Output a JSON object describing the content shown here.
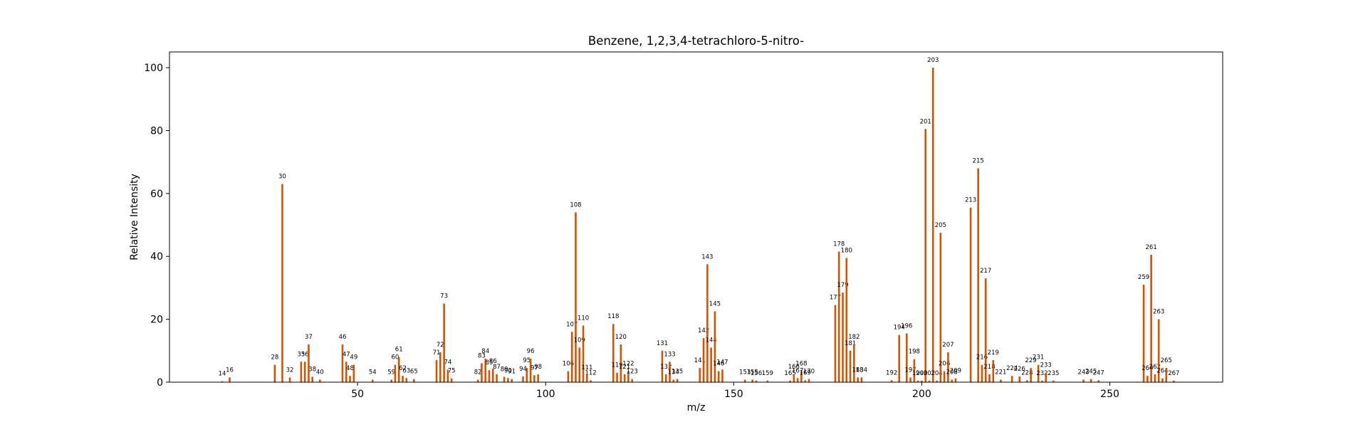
{
  "chart_data": {
    "type": "bar",
    "title": "Benzene, 1,2,3,4-tetrachloro-5-nitro-",
    "xlabel": "m/z",
    "ylabel": "Relative Intensity",
    "xlim": [
      0,
      280
    ],
    "ylim": [
      0,
      105
    ],
    "xticks": [
      50,
      100,
      150,
      200,
      250
    ],
    "yticks": [
      0,
      20,
      40,
      60,
      80,
      100
    ],
    "grid": false,
    "bar_color": "#d35400",
    "peaks": [
      {
        "mz": 14,
        "intensity": 0.3,
        "label": "14"
      },
      {
        "mz": 16,
        "intensity": 1.5,
        "label": "16"
      },
      {
        "mz": 28,
        "intensity": 5.5,
        "label": "28"
      },
      {
        "mz": 30,
        "intensity": 63,
        "label": "30"
      },
      {
        "mz": 32,
        "intensity": 1.5,
        "label": "32"
      },
      {
        "mz": 35,
        "intensity": 6.5,
        "label": "35"
      },
      {
        "mz": 36,
        "intensity": 6.5,
        "label": "36"
      },
      {
        "mz": 37,
        "intensity": 12,
        "label": "37"
      },
      {
        "mz": 38,
        "intensity": 1.7,
        "label": "38"
      },
      {
        "mz": 40,
        "intensity": 0.8,
        "label": "40"
      },
      {
        "mz": 46,
        "intensity": 12,
        "label": "46"
      },
      {
        "mz": 47,
        "intensity": 6.5,
        "label": "47"
      },
      {
        "mz": 48,
        "intensity": 2.0,
        "label": "48"
      },
      {
        "mz": 49,
        "intensity": 5.5,
        "label": "49"
      },
      {
        "mz": 54,
        "intensity": 0.8,
        "label": "54"
      },
      {
        "mz": 59,
        "intensity": 0.8,
        "label": "59"
      },
      {
        "mz": 60,
        "intensity": 5.5,
        "label": "60"
      },
      {
        "mz": 61,
        "intensity": 8,
        "label": "61"
      },
      {
        "mz": 62,
        "intensity": 2.0,
        "label": "62"
      },
      {
        "mz": 63,
        "intensity": 1.3,
        "label": "63"
      },
      {
        "mz": 65,
        "intensity": 1.0,
        "label": "65"
      },
      {
        "mz": 71,
        "intensity": 7,
        "label": "71"
      },
      {
        "mz": 72,
        "intensity": 9.5,
        "label": "72"
      },
      {
        "mz": 73,
        "intensity": 25,
        "label": "73"
      },
      {
        "mz": 74,
        "intensity": 4,
        "label": "74"
      },
      {
        "mz": 75,
        "intensity": 1.2,
        "label": "75"
      },
      {
        "mz": 82,
        "intensity": 0.8,
        "label": "82"
      },
      {
        "mz": 83,
        "intensity": 6,
        "label": "83"
      },
      {
        "mz": 84,
        "intensity": 7.5,
        "label": "84"
      },
      {
        "mz": 85,
        "intensity": 3.8,
        "label": "85"
      },
      {
        "mz": 86,
        "intensity": 4.3,
        "label": "86"
      },
      {
        "mz": 87,
        "intensity": 2.5,
        "label": "87"
      },
      {
        "mz": 89,
        "intensity": 1.7,
        "label": "89"
      },
      {
        "mz": 90,
        "intensity": 1.3,
        "label": "90"
      },
      {
        "mz": 91,
        "intensity": 1.0,
        "label": "91"
      },
      {
        "mz": 94,
        "intensity": 1.8,
        "label": "94"
      },
      {
        "mz": 95,
        "intensity": 4.5,
        "label": "95"
      },
      {
        "mz": 96,
        "intensity": 7.5,
        "label": "96"
      },
      {
        "mz": 97,
        "intensity": 2.2,
        "label": "97"
      },
      {
        "mz": 98,
        "intensity": 2.5,
        "label": "98"
      },
      {
        "mz": 106,
        "intensity": 3.5,
        "label": "106"
      },
      {
        "mz": 107,
        "intensity": 16,
        "label": "107"
      },
      {
        "mz": 108,
        "intensity": 54,
        "label": "108"
      },
      {
        "mz": 109,
        "intensity": 11,
        "label": "109"
      },
      {
        "mz": 110,
        "intensity": 18,
        "label": "110"
      },
      {
        "mz": 111,
        "intensity": 2.3,
        "label": "111"
      },
      {
        "mz": 112,
        "intensity": 0.6,
        "label": "112"
      },
      {
        "mz": 118,
        "intensity": 18.5,
        "label": "118"
      },
      {
        "mz": 119,
        "intensity": 3.0,
        "label": "119"
      },
      {
        "mz": 120,
        "intensity": 12,
        "label": "120"
      },
      {
        "mz": 121,
        "intensity": 2.5,
        "label": "121"
      },
      {
        "mz": 122,
        "intensity": 3.5,
        "label": "122"
      },
      {
        "mz": 123,
        "intensity": 1.0,
        "label": "123"
      },
      {
        "mz": 131,
        "intensity": 10,
        "label": "131"
      },
      {
        "mz": 132,
        "intensity": 2.5,
        "label": "132"
      },
      {
        "mz": 133,
        "intensity": 6.5,
        "label": "133"
      },
      {
        "mz": 134,
        "intensity": 0.8,
        "label": "134"
      },
      {
        "mz": 135,
        "intensity": 1.0,
        "label": "135"
      },
      {
        "mz": 141,
        "intensity": 4.5,
        "label": "141"
      },
      {
        "mz": 142,
        "intensity": 14,
        "label": "142"
      },
      {
        "mz": 143,
        "intensity": 37.5,
        "label": "143"
      },
      {
        "mz": 144,
        "intensity": 11,
        "label": "144"
      },
      {
        "mz": 145,
        "intensity": 22.5,
        "label": "145"
      },
      {
        "mz": 146,
        "intensity": 3.5,
        "label": "146"
      },
      {
        "mz": 147,
        "intensity": 4.0,
        "label": "147"
      },
      {
        "mz": 153,
        "intensity": 0.8,
        "label": "153"
      },
      {
        "mz": 155,
        "intensity": 0.8,
        "label": "155"
      },
      {
        "mz": 156,
        "intensity": 0.5,
        "label": "156"
      },
      {
        "mz": 159,
        "intensity": 0.5,
        "label": "159"
      },
      {
        "mz": 165,
        "intensity": 0.5,
        "label": "165"
      },
      {
        "mz": 166,
        "intensity": 2.5,
        "label": "166"
      },
      {
        "mz": 167,
        "intensity": 1.3,
        "label": "167"
      },
      {
        "mz": 168,
        "intensity": 3.5,
        "label": "168"
      },
      {
        "mz": 169,
        "intensity": 0.6,
        "label": "169"
      },
      {
        "mz": 170,
        "intensity": 1.0,
        "label": "170"
      },
      {
        "mz": 177,
        "intensity": 24.5,
        "label": "177"
      },
      {
        "mz": 178,
        "intensity": 41.5,
        "label": "178"
      },
      {
        "mz": 179,
        "intensity": 28.5,
        "label": "179"
      },
      {
        "mz": 180,
        "intensity": 39.5,
        "label": "180"
      },
      {
        "mz": 181,
        "intensity": 10,
        "label": "181"
      },
      {
        "mz": 182,
        "intensity": 12,
        "label": "182"
      },
      {
        "mz": 183,
        "intensity": 1.5,
        "label": "183"
      },
      {
        "mz": 184,
        "intensity": 1.5,
        "label": "184"
      },
      {
        "mz": 192,
        "intensity": 0.6,
        "label": "192"
      },
      {
        "mz": 194,
        "intensity": 15,
        "label": "194"
      },
      {
        "mz": 196,
        "intensity": 15.5,
        "label": "196"
      },
      {
        "mz": 197,
        "intensity": 1.5,
        "label": "197"
      },
      {
        "mz": 198,
        "intensity": 7.3,
        "label": "198"
      },
      {
        "mz": 199,
        "intensity": 0.5,
        "label": "199"
      },
      {
        "mz": 200,
        "intensity": 0.5,
        "label": "200"
      },
      {
        "mz": 201,
        "intensity": 80.5,
        "label": "201"
      },
      {
        "mz": 202,
        "intensity": 0.5,
        "label": "202"
      },
      {
        "mz": 203,
        "intensity": 100,
        "label": "203"
      },
      {
        "mz": 204,
        "intensity": 0.5,
        "label": "204"
      },
      {
        "mz": 205,
        "intensity": 47.5,
        "label": "205"
      },
      {
        "mz": 206,
        "intensity": 3.5,
        "label": "206"
      },
      {
        "mz": 207,
        "intensity": 9.5,
        "label": "207"
      },
      {
        "mz": 208,
        "intensity": 0.8,
        "label": "208"
      },
      {
        "mz": 209,
        "intensity": 1.2,
        "label": "209"
      },
      {
        "mz": 213,
        "intensity": 55.5,
        "label": "213"
      },
      {
        "mz": 215,
        "intensity": 68,
        "label": "215"
      },
      {
        "mz": 216,
        "intensity": 5.5,
        "label": "216"
      },
      {
        "mz": 217,
        "intensity": 33,
        "label": "217"
      },
      {
        "mz": 218,
        "intensity": 2.5,
        "label": "218"
      },
      {
        "mz": 219,
        "intensity": 7,
        "label": "219"
      },
      {
        "mz": 221,
        "intensity": 0.8,
        "label": "221"
      },
      {
        "mz": 224,
        "intensity": 2.0,
        "label": "224"
      },
      {
        "mz": 226,
        "intensity": 1.8,
        "label": "226"
      },
      {
        "mz": 228,
        "intensity": 0.6,
        "label": "228"
      },
      {
        "mz": 229,
        "intensity": 4.5,
        "label": "229"
      },
      {
        "mz": 231,
        "intensity": 5.5,
        "label": "231"
      },
      {
        "mz": 232,
        "intensity": 0.5,
        "label": "232"
      },
      {
        "mz": 233,
        "intensity": 3.0,
        "label": "233"
      },
      {
        "mz": 235,
        "intensity": 0.5,
        "label": "235"
      },
      {
        "mz": 243,
        "intensity": 0.8,
        "label": "243"
      },
      {
        "mz": 245,
        "intensity": 1.0,
        "label": "245"
      },
      {
        "mz": 247,
        "intensity": 0.6,
        "label": "247"
      },
      {
        "mz": 259,
        "intensity": 31,
        "label": "259"
      },
      {
        "mz": 260,
        "intensity": 2.0,
        "label": "260"
      },
      {
        "mz": 261,
        "intensity": 40.5,
        "label": "261"
      },
      {
        "mz": 262,
        "intensity": 2.5,
        "label": "262"
      },
      {
        "mz": 263,
        "intensity": 20,
        "label": "263"
      },
      {
        "mz": 264,
        "intensity": 1.2,
        "label": "264"
      },
      {
        "mz": 265,
        "intensity": 4.5,
        "label": "265"
      },
      {
        "mz": 267,
        "intensity": 0.5,
        "label": "267"
      }
    ]
  }
}
